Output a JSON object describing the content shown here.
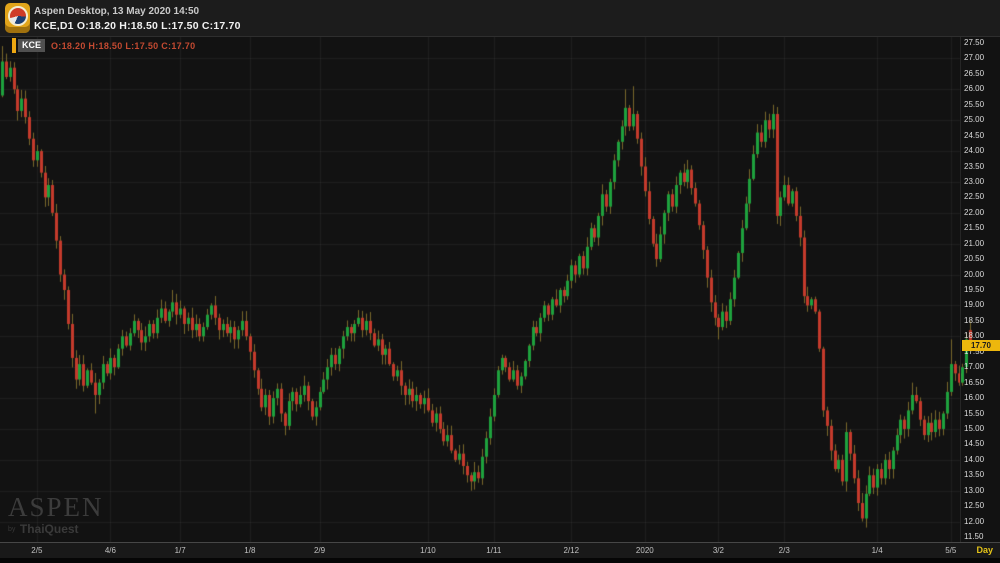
{
  "window": {
    "title_line": "Aspen Desktop, 13 May 2020 14:50",
    "symbol_line": "KCE,D1 O:18.20 H:18.50 L:17.50 C:17.70"
  },
  "overlay": {
    "symbol_badge": "KCE",
    "ohlc_text": "O:18.20 H:18.50 L:17.50 C:17.70"
  },
  "watermark": {
    "brand": "ASPEN",
    "byline": "by",
    "company": "ThaiQuest"
  },
  "colors": {
    "up": "#1ea13d",
    "down": "#c43a2c",
    "wick": "#79682a",
    "grid": "rgba(255,255,255,0.05)",
    "tag_bg": "#edb70d",
    "accent": "#eda712"
  },
  "chart_data": {
    "type": "candlestick",
    "symbol": "KCE",
    "interval": "D1",
    "timeframe_label": "Day",
    "last_price_tag": "17.70",
    "last": {
      "open": 18.2,
      "high": 18.5,
      "low": 17.5,
      "close": 17.7
    },
    "y_axis": {
      "min": 11.5,
      "max": 27.5,
      "step": 0.5
    },
    "y_tick_labels": [
      "27.50",
      "27.00",
      "26.50",
      "26.00",
      "25.50",
      "25.00",
      "24.50",
      "24.00",
      "23.50",
      "23.00",
      "22.50",
      "22.00",
      "21.50",
      "21.00",
      "20.50",
      "20.00",
      "19.50",
      "19.00",
      "18.50",
      "18.00",
      "17.50",
      "17.00",
      "16.50",
      "16.00",
      "15.50",
      "15.00",
      "14.50",
      "14.00",
      "13.50",
      "13.00",
      "12.50",
      "12.00",
      "11.50"
    ],
    "x_ticks": [
      {
        "label": "2/5",
        "i": 9
      },
      {
        "label": "4/6",
        "i": 28
      },
      {
        "label": "1/7",
        "i": 46
      },
      {
        "label": "1/8",
        "i": 64
      },
      {
        "label": "2/9",
        "i": 82
      },
      {
        "label": "1/10",
        "i": 110
      },
      {
        "label": "1/11",
        "i": 127
      },
      {
        "label": "2/12",
        "i": 147
      },
      {
        "label": "2020",
        "i": 166
      },
      {
        "label": "3/2",
        "i": 185
      },
      {
        "label": "2/3",
        "i": 202
      },
      {
        "label": "1/4",
        "i": 226
      },
      {
        "label": "5/5",
        "i": 245
      }
    ],
    "first_open": 25.8,
    "closes": [
      26.9,
      26.4,
      26.7,
      26.0,
      25.3,
      25.7,
      25.1,
      24.4,
      23.7,
      24.0,
      23.3,
      22.5,
      22.9,
      22.0,
      21.1,
      20.0,
      19.5,
      18.4,
      17.3,
      16.6,
      17.1,
      16.4,
      16.9,
      16.5,
      16.1,
      16.5,
      17.1,
      16.8,
      17.3,
      17.0,
      17.6,
      18.0,
      17.7,
      18.1,
      18.5,
      18.2,
      17.8,
      18.0,
      18.4,
      18.1,
      18.6,
      18.9,
      18.5,
      18.8,
      19.1,
      18.7,
      18.9,
      18.4,
      18.6,
      18.2,
      18.4,
      18.0,
      18.3,
      18.7,
      19.0,
      18.6,
      18.2,
      18.4,
      18.1,
      18.3,
      17.9,
      18.2,
      18.5,
      18.0,
      17.5,
      16.9,
      16.3,
      15.7,
      16.1,
      15.4,
      16.0,
      16.3,
      15.5,
      15.1,
      15.9,
      16.2,
      15.8,
      16.1,
      16.4,
      15.9,
      15.4,
      15.7,
      16.2,
      16.6,
      17.0,
      17.4,
      17.1,
      17.6,
      18.0,
      18.3,
      18.1,
      18.4,
      18.6,
      18.2,
      18.5,
      18.1,
      17.7,
      17.9,
      17.4,
      17.6,
      17.1,
      16.7,
      16.9,
      16.4,
      16.1,
      16.3,
      15.9,
      16.1,
      15.8,
      16.0,
      15.6,
      15.2,
      15.5,
      15.0,
      14.6,
      14.8,
      14.3,
      14.0,
      14.2,
      13.8,
      13.5,
      13.3,
      13.6,
      13.4,
      14.1,
      14.7,
      15.4,
      16.1,
      16.9,
      17.3,
      17.0,
      16.6,
      16.9,
      16.4,
      16.7,
      17.2,
      17.7,
      18.3,
      18.1,
      18.6,
      19.0,
      18.7,
      19.2,
      19.0,
      19.5,
      19.3,
      19.8,
      20.3,
      20.0,
      20.6,
      20.2,
      20.9,
      21.5,
      21.2,
      21.9,
      22.6,
      22.2,
      23.0,
      23.7,
      24.3,
      24.8,
      25.4,
      24.8,
      25.2,
      24.4,
      23.5,
      22.7,
      21.8,
      21.0,
      20.5,
      21.3,
      22.0,
      22.6,
      22.2,
      22.9,
      23.3,
      23.0,
      23.4,
      22.8,
      22.3,
      21.6,
      20.8,
      19.9,
      19.1,
      18.6,
      18.3,
      18.8,
      18.5,
      19.2,
      19.9,
      20.7,
      21.5,
      22.3,
      23.1,
      23.9,
      24.6,
      24.3,
      25.0,
      24.7,
      25.2,
      21.9,
      22.5,
      22.9,
      22.3,
      22.7,
      21.9,
      21.2,
      19.3,
      19.0,
      19.2,
      18.8,
      17.6,
      15.6,
      15.1,
      14.3,
      13.7,
      14.0,
      13.3,
      14.9,
      14.2,
      13.4,
      12.6,
      12.1,
      12.9,
      13.5,
      13.1,
      13.7,
      13.4,
      14.0,
      13.7,
      14.3,
      14.8,
      15.3,
      15.0,
      15.6,
      16.1,
      15.9,
      15.3,
      14.8,
      15.2,
      14.9,
      15.3,
      15.0,
      15.5,
      16.2,
      17.1,
      16.8,
      16.5,
      17.0,
      17.9,
      17.7
    ],
    "overrides": {
      "0": {
        "h": 27.4
      },
      "19": {
        "l": 16.3
      },
      "24": {
        "l": 15.5
      },
      "44": {
        "h": 19.5
      },
      "92": {
        "h": 18.85
      },
      "121": {
        "l": 13.0
      },
      "161": {
        "h": 26.0
      },
      "163": {
        "h": 26.1
      },
      "185": {
        "l": 17.9
      },
      "199": {
        "h": 25.5
      },
      "222": {
        "l": 12.0
      },
      "235": {
        "h": 16.5
      },
      "245": {
        "h": 17.9
      },
      "249": {
        "h": 18.1
      },
      "250": {
        "o": 18.2,
        "h": 18.5,
        "l": 17.5,
        "c": 17.7
      }
    }
  }
}
